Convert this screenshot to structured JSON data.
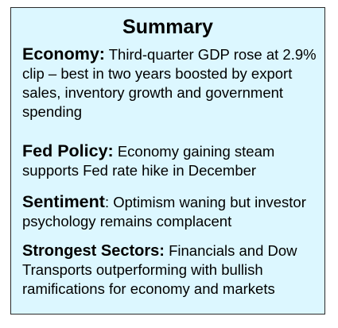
{
  "title": "Summary",
  "sections": [
    {
      "heading": "Economy:",
      "body": " Third-quarter GDP rose at 2.9% clip – best in two years boosted by export sales, inventory growth and government spending"
    },
    {
      "heading": "Fed Policy:",
      "body": " Economy gaining steam supports Fed rate hike in December"
    },
    {
      "heading": "Sentiment",
      "body": ": Optimism waning but investor psychology remains complacent"
    },
    {
      "heading": "Strongest Sectors:",
      "body": " Financials and Dow Transports outperforming with bullish ramifications for economy and markets"
    }
  ],
  "colors": {
    "box_background": "#dcf7ff",
    "border": "#2a2a2a",
    "text": "#000000"
  }
}
